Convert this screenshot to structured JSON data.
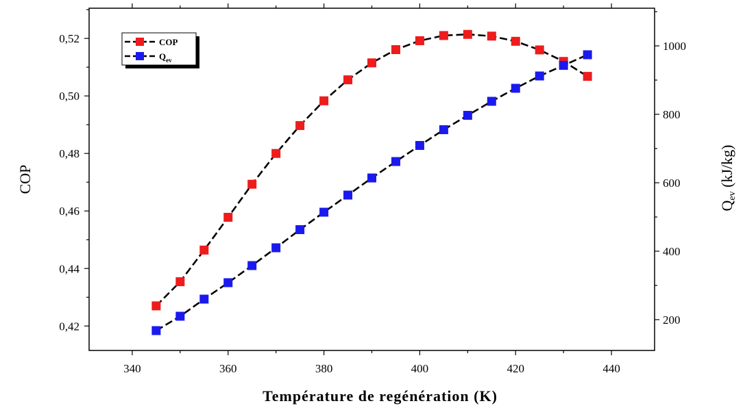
{
  "chart_data": {
    "type": "line",
    "xlabel": "Température de regénération (K)",
    "ylabel_left": "COP",
    "ylabel_right": {
      "main": "Q",
      "sub": "ev",
      "rest": " (kJ/kg)"
    },
    "xlim": [
      331,
      449
    ],
    "ylim_left": [
      0.4115,
      0.5305
    ],
    "ylim_right": [
      110,
      1110
    ],
    "x_ticks": [
      340,
      360,
      380,
      400,
      420,
      440
    ],
    "y_ticks_left": [
      0.42,
      0.44,
      0.46,
      0.48,
      0.5,
      0.52
    ],
    "y_ticks_right": [
      200,
      400,
      600,
      800,
      1000
    ],
    "x": [
      345,
      350,
      355,
      360,
      365,
      370,
      375,
      380,
      385,
      390,
      395,
      400,
      405,
      410,
      415,
      420,
      425,
      430,
      435
    ],
    "series": [
      {
        "name": "COP",
        "axis": "left",
        "color": "#ee1c1c",
        "values": [
          0.427,
          0.4354,
          0.4464,
          0.4578,
          0.4693,
          0.48,
          0.4897,
          0.4983,
          0.5056,
          0.5115,
          0.5161,
          0.5192,
          0.521,
          0.5214,
          0.5208,
          0.519,
          0.516,
          0.512,
          0.5068
        ]
      },
      {
        "name": "Qev",
        "axis": "right",
        "color": "#1a1aee",
        "values": [
          168,
          210,
          260,
          308,
          358,
          410,
          463,
          514,
          564,
          614,
          662,
          709,
          755,
          797,
          838,
          876,
          912,
          943,
          974
        ]
      }
    ],
    "legend": {
      "position": "top-left",
      "entries": [
        {
          "label": "COP",
          "sub": ""
        },
        {
          "label": "Q",
          "sub": "ev"
        }
      ]
    }
  }
}
